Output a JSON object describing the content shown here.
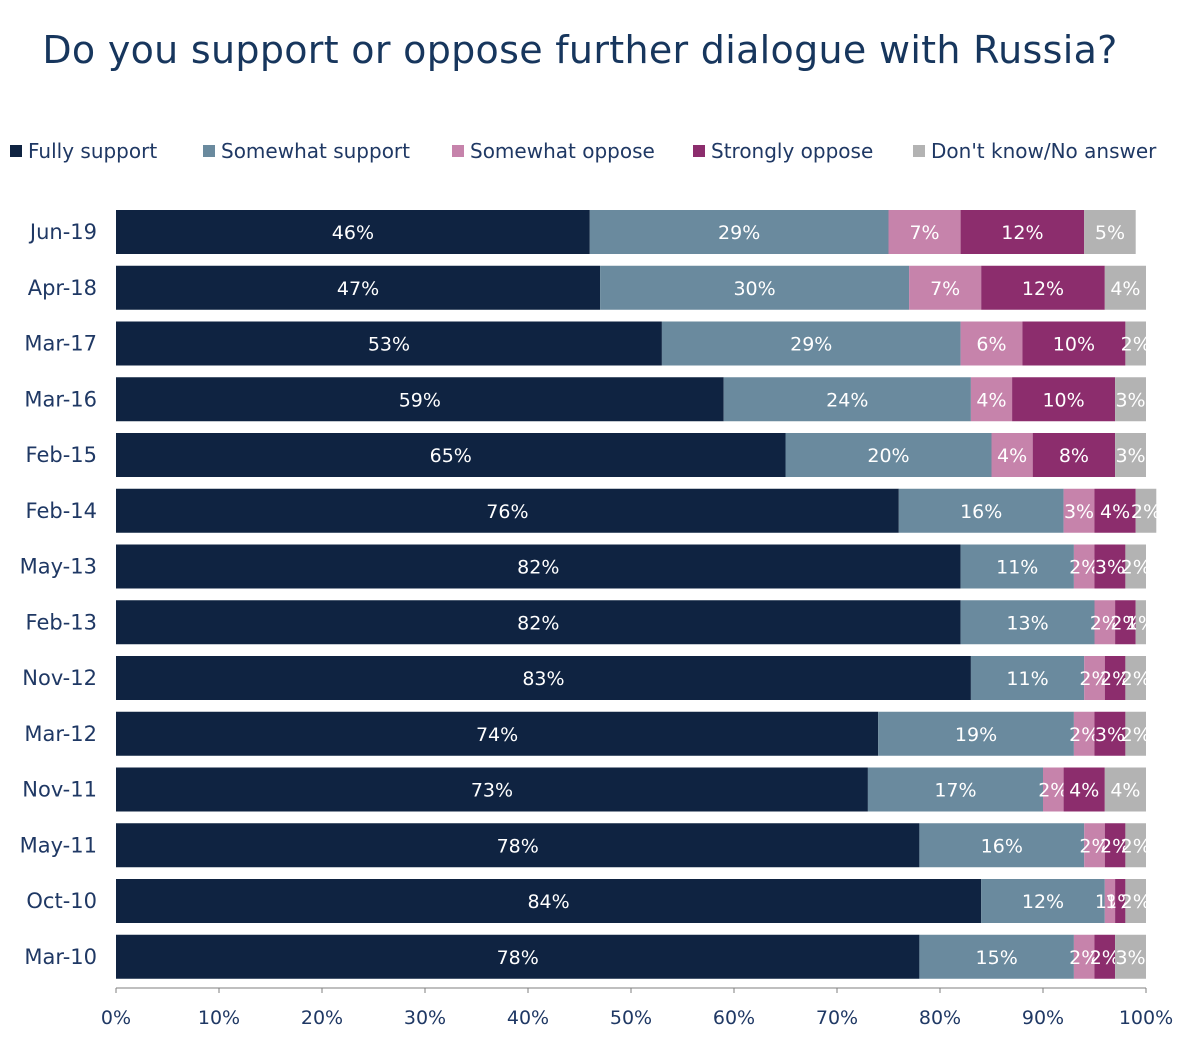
{
  "chart_data": {
    "type": "bar",
    "orientation": "horizontal",
    "stacked": true,
    "title": "Do you support or oppose further dialogue with Russia?",
    "categories": [
      "Jun-19",
      "Apr-18",
      "Mar-17",
      "Mar-16",
      "Feb-15",
      "Feb-14",
      "May-13",
      "Feb-13",
      "Nov-12",
      "Mar-12",
      "Nov-11",
      "May-11",
      "Oct-10",
      "Mar-10"
    ],
    "series": [
      {
        "name": "Fully support",
        "color": "#0f2341",
        "values": [
          46,
          47,
          53,
          59,
          65,
          76,
          82,
          82,
          83,
          74,
          73,
          78,
          84,
          78
        ]
      },
      {
        "name": "Somewhat support",
        "color": "#6a8a9e",
        "values": [
          29,
          30,
          29,
          24,
          20,
          16,
          11,
          13,
          11,
          19,
          17,
          16,
          12,
          15
        ]
      },
      {
        "name": "Somewhat oppose",
        "color": "#c683ab",
        "values": [
          7,
          7,
          6,
          4,
          4,
          3,
          2,
          2,
          2,
          2,
          2,
          2,
          1,
          2
        ]
      },
      {
        "name": "Strongly oppose",
        "color": "#8c2d6d",
        "values": [
          12,
          12,
          10,
          10,
          8,
          4,
          3,
          2,
          2,
          3,
          4,
          2,
          1,
          2
        ]
      },
      {
        "name": "Don't know/No answer",
        "color": "#b3b3b3",
        "values": [
          5,
          4,
          2,
          3,
          3,
          2,
          2,
          1,
          2,
          2,
          4,
          2,
          2,
          3
        ]
      }
    ],
    "data_labels": [
      [
        "46%",
        "29%",
        "7%",
        "12%",
        "5%"
      ],
      [
        "47%",
        "30%",
        "7%",
        "12%",
        "4%"
      ],
      [
        "53%",
        "29%",
        "6%",
        "10%",
        "2%"
      ],
      [
        "59%",
        "24%",
        "4%",
        "10%",
        "3%"
      ],
      [
        "65%",
        "20%",
        "4%",
        "8%",
        "3%"
      ],
      [
        "76%",
        "16%",
        "3%",
        "4%",
        "2%"
      ],
      [
        "82%",
        "11%",
        "2%",
        "3%",
        "2%"
      ],
      [
        "82%",
        "13%",
        "2%",
        "2%",
        "1%"
      ],
      [
        "83%",
        "11%",
        "2%",
        "2%",
        "2%"
      ],
      [
        "74%",
        "19%",
        "2%",
        "3%",
        "2%"
      ],
      [
        "73%",
        "17%",
        "2%",
        "4%",
        "4%"
      ],
      [
        "78%",
        "16%",
        "2%",
        "2%",
        "2%"
      ],
      [
        "84%",
        "12%",
        "1%",
        "1%",
        "2%"
      ],
      [
        "78%",
        "15%",
        "2%",
        "2%",
        "3%"
      ]
    ],
    "x_ticks": [
      "0%",
      "10%",
      "20%",
      "30%",
      "40%",
      "50%",
      "60%",
      "70%",
      "80%",
      "90%",
      "100%"
    ],
    "xlim": [
      0,
      100
    ],
    "grid": false,
    "legend_position": "top"
  }
}
